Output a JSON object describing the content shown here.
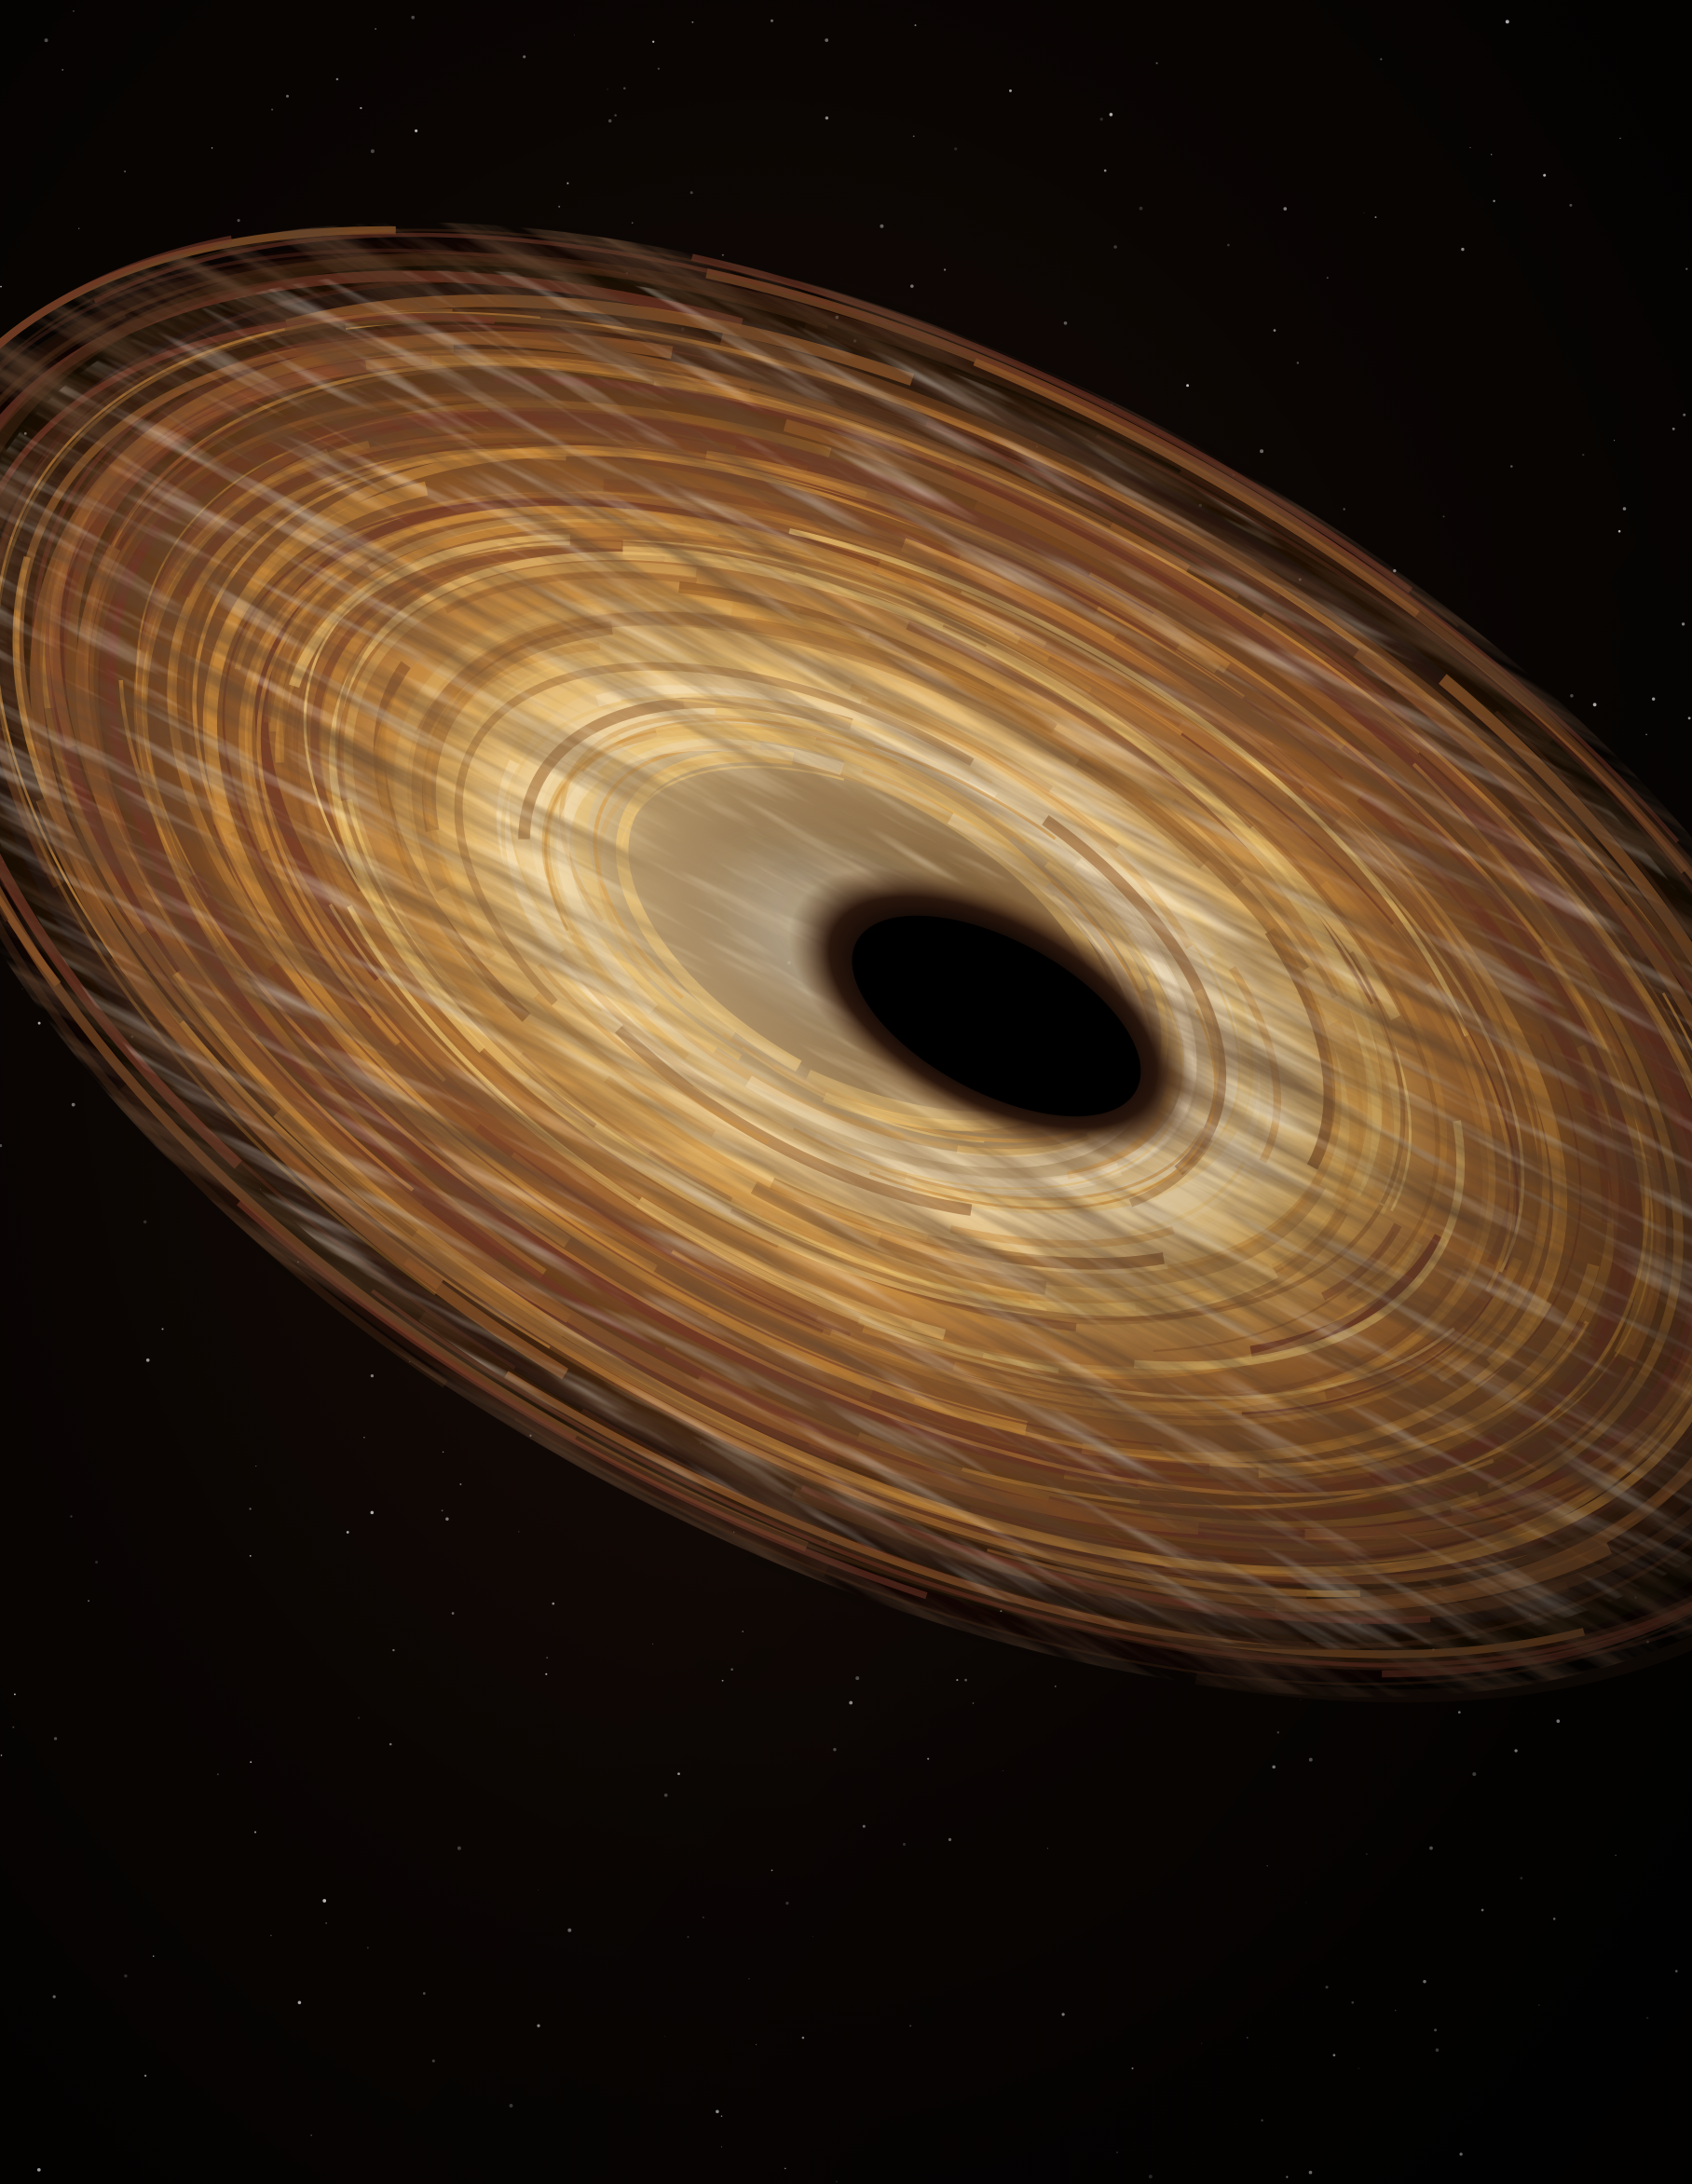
{
  "image": {
    "subject": "black-hole-accretion-disk",
    "colors": {
      "space": "#050302",
      "space_warm": "#1a0c06",
      "disk_dark": "#3a2010",
      "disk_mid": "#8a5428",
      "disk_amber": "#c88a3c",
      "disk_gold": "#e8c070",
      "disk_highlight": "#fff4dc",
      "disk_rust": "#6e3424",
      "hole": "#020101",
      "star": "#ffffff"
    }
  }
}
